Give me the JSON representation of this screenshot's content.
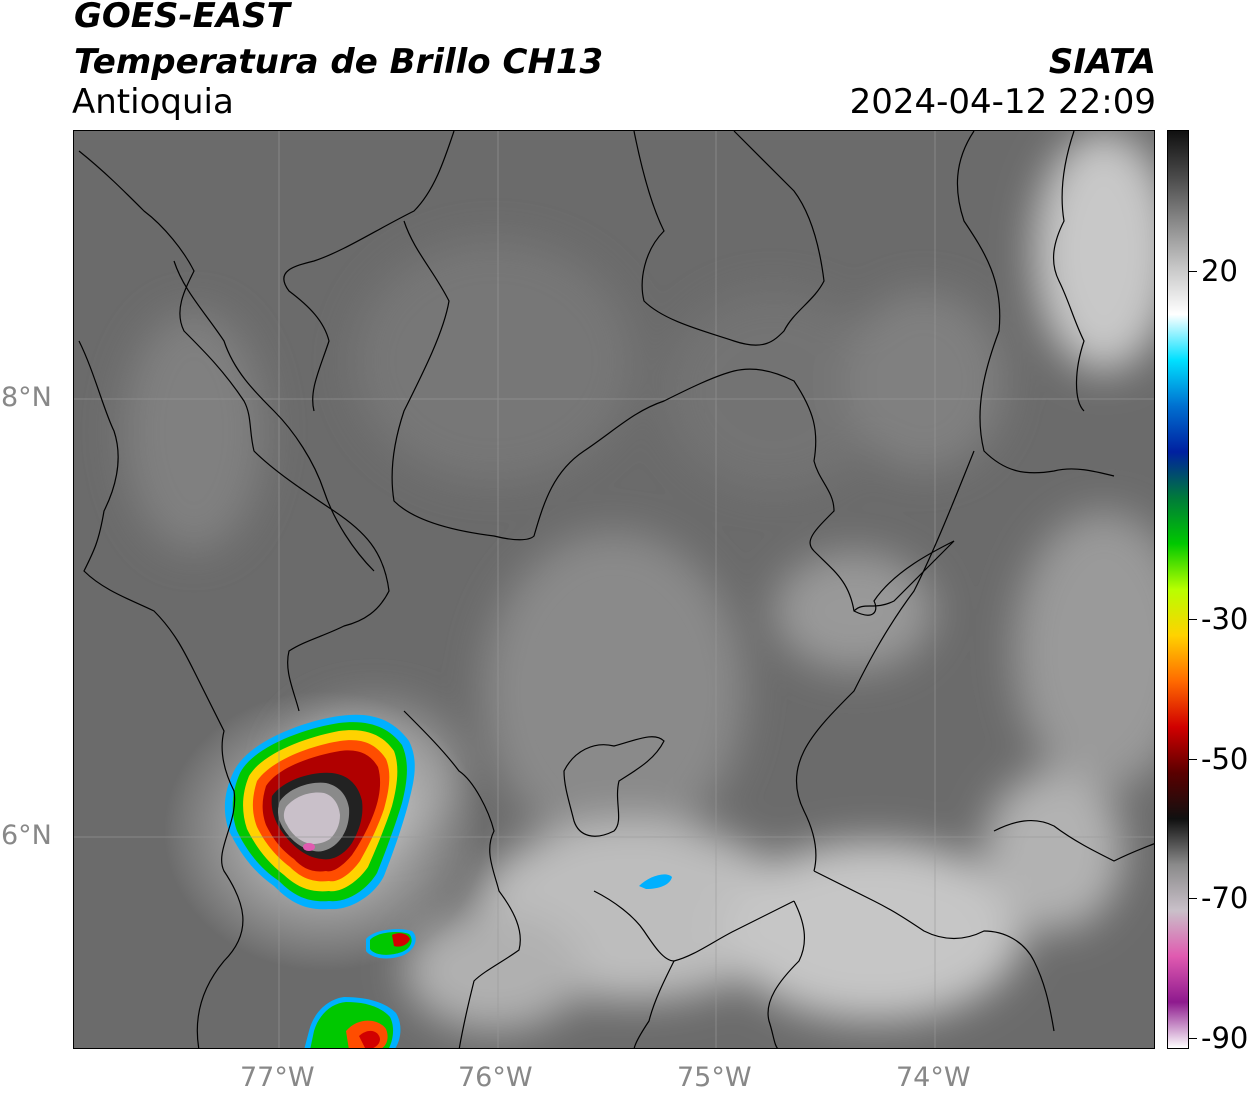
{
  "header": {
    "satellite": "GOES-EAST",
    "product": "Temperatura de Brillo CH13",
    "region": "Antioquia",
    "agency": "SIATA",
    "datetime": "2024-04-12 22:09"
  },
  "map": {
    "lat_labels": [
      "8°N",
      "6°N"
    ],
    "lon_labels": [
      "77°W",
      "76°W",
      "75°W",
      "74°W"
    ],
    "colors": {
      "background": "#6e6e6e",
      "gridline": "#9a9a9a",
      "border": "#000000"
    }
  },
  "colorbar": {
    "ticks": [
      "20",
      "-30",
      "-50",
      "-70",
      "-90"
    ],
    "range": [
      -90,
      40
    ],
    "gradient": [
      "#ffffff",
      "#8e1a8e",
      "#e05ab0",
      "#c9c0c9",
      "#8a8a8a",
      "#101010",
      "#5a0000",
      "#d10000",
      "#ff6a00",
      "#ffd200",
      "#b8ff00",
      "#00c800",
      "#007a3a",
      "#0020a0",
      "#0070d0",
      "#00e0ff",
      "#ffffff",
      "#c8c8c8",
      "#8a8a8a",
      "#4a4a4a",
      "#101010"
    ]
  }
}
